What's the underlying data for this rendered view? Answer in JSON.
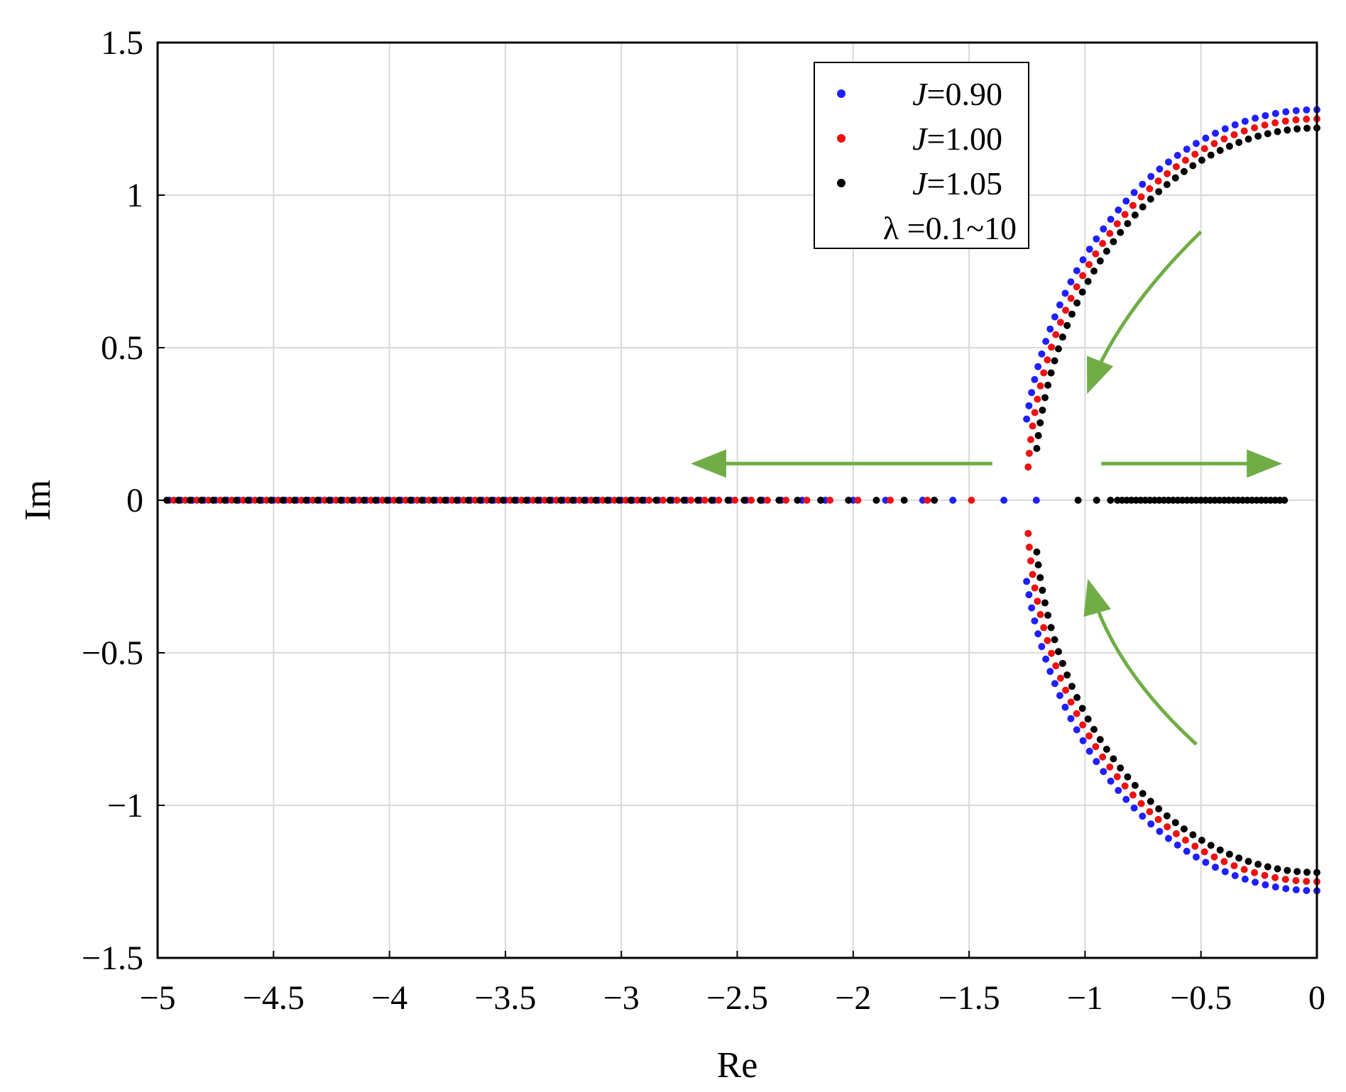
{
  "chart_data": {
    "type": "scatter",
    "xlabel": "Re",
    "ylabel": "Im",
    "xlim": [
      -5,
      0
    ],
    "ylim": [
      -1.5,
      1.5
    ],
    "xticks": [
      -5,
      -4.5,
      -4,
      -3.5,
      -3,
      -2.5,
      -2,
      -1.5,
      -1,
      -0.5,
      0
    ],
    "xtick_labels": [
      "−5",
      "−4.5",
      "−4",
      "−3.5",
      "−3",
      "−2.5",
      "−2",
      "−1.5",
      "−1",
      "−0.5",
      "0"
    ],
    "yticks": [
      1.5,
      1,
      0.5,
      0,
      -0.5,
      -1,
      -1.5
    ],
    "ytick_labels": [
      "1.5",
      "1",
      "0.5",
      "0",
      "−0.5",
      "−1",
      "−1.5"
    ],
    "grid": true,
    "legend_position": "top-right",
    "legend_note": "λ =0.1~10",
    "series": [
      {
        "name": "J=0.90",
        "label_italic": "J",
        "label_rest": "=0.90",
        "color": "#1f1fff",
        "arc": {
          "center_re": 0,
          "radius": 1.28,
          "theta_start_deg": 90,
          "theta_end_deg": 168,
          "points": 40
        },
        "axis_re": [
          -4.95,
          -4.9,
          -4.85,
          -4.8,
          -4.75,
          -4.7,
          -4.65,
          -4.6,
          -4.55,
          -4.5,
          -4.45,
          -4.4,
          -4.35,
          -4.3,
          -4.25,
          -4.2,
          -4.15,
          -4.1,
          -4.05,
          -4.0,
          -3.95,
          -3.9,
          -3.85,
          -3.8,
          -3.75,
          -3.7,
          -3.65,
          -3.6,
          -3.55,
          -3.5,
          -3.45,
          -3.4,
          -3.35,
          -3.3,
          -3.25,
          -3.2,
          -3.15,
          -3.1,
          -3.05,
          -3.0,
          -2.95,
          -2.9,
          -2.84,
          -2.78,
          -2.72,
          -2.66,
          -2.6,
          -2.53,
          -2.46,
          -2.39,
          -2.31,
          -2.22,
          -2.12,
          -2.0,
          -1.86,
          -1.7,
          -1.57,
          -1.35,
          -1.21
        ]
      },
      {
        "name": "J=1.00",
        "label_italic": "J",
        "label_rest": "=1.00",
        "color": "#ee1111",
        "arc": {
          "center_re": 0,
          "radius": 1.25,
          "theta_start_deg": 90,
          "theta_end_deg": 175,
          "points": 42
        },
        "axis_re": [
          -4.93,
          -4.88,
          -4.83,
          -4.78,
          -4.73,
          -4.68,
          -4.63,
          -4.58,
          -4.53,
          -4.48,
          -4.43,
          -4.38,
          -4.33,
          -4.28,
          -4.23,
          -4.18,
          -4.13,
          -4.08,
          -4.03,
          -3.98,
          -3.93,
          -3.88,
          -3.83,
          -3.78,
          -3.73,
          -3.68,
          -3.63,
          -3.58,
          -3.53,
          -3.48,
          -3.43,
          -3.38,
          -3.33,
          -3.28,
          -3.23,
          -3.18,
          -3.13,
          -3.08,
          -3.03,
          -2.98,
          -2.93,
          -2.88,
          -2.82,
          -2.76,
          -2.7,
          -2.64,
          -2.58,
          -2.51,
          -2.44,
          -2.37,
          -2.29,
          -2.2,
          -2.1,
          -1.98,
          -1.84,
          -1.68,
          -1.49
        ]
      },
      {
        "name": "J=1.05",
        "label_italic": "J",
        "label_rest": "=1.05",
        "color": "#000000",
        "arc": {
          "center_re": 0,
          "radius": 1.22,
          "theta_start_deg": 90,
          "theta_end_deg": 172,
          "points": 42
        },
        "axis_re": [
          -4.96,
          -4.91,
          -4.86,
          -4.81,
          -4.76,
          -4.71,
          -4.66,
          -4.61,
          -4.56,
          -4.51,
          -4.46,
          -4.41,
          -4.36,
          -4.31,
          -4.26,
          -4.21,
          -4.16,
          -4.11,
          -4.06,
          -4.01,
          -3.96,
          -3.91,
          -3.86,
          -3.81,
          -3.76,
          -3.71,
          -3.66,
          -3.61,
          -3.56,
          -3.51,
          -3.46,
          -3.41,
          -3.36,
          -3.31,
          -3.26,
          -3.21,
          -3.16,
          -3.11,
          -3.06,
          -3.01,
          -2.96,
          -2.91,
          -2.85,
          -2.79,
          -2.73,
          -2.67,
          -2.61,
          -2.54,
          -2.47,
          -2.4,
          -2.32,
          -2.24,
          -2.14,
          -2.02,
          -1.9,
          -1.78,
          -1.65,
          -1.03,
          -0.95,
          -0.89,
          -0.86,
          -0.84,
          -0.82,
          -0.8,
          -0.78,
          -0.76,
          -0.74,
          -0.72,
          -0.7,
          -0.68,
          -0.66,
          -0.64,
          -0.62,
          -0.6,
          -0.58,
          -0.56,
          -0.54,
          -0.52,
          -0.5,
          -0.48,
          -0.46,
          -0.44,
          -0.42,
          -0.4,
          -0.38,
          -0.36,
          -0.34,
          -0.32,
          -0.3,
          -0.28,
          -0.26,
          -0.24,
          -0.22,
          -0.2,
          -0.18,
          -0.16,
          -0.14
        ]
      }
    ],
    "annotation_arrows": [
      {
        "kind": "curved",
        "from": [
          -0.5,
          0.88
        ],
        "ctrl": [
          -0.85,
          0.62
        ],
        "to": [
          -0.98,
          0.37
        ],
        "color": "#70ad47"
      },
      {
        "kind": "curved",
        "from": [
          -0.52,
          -0.8
        ],
        "ctrl": [
          -0.88,
          -0.55
        ],
        "to": [
          -0.98,
          -0.28
        ],
        "color": "#70ad47"
      },
      {
        "kind": "straight",
        "from": [
          -1.4,
          0.12
        ],
        "to": [
          -2.67,
          0.12
        ],
        "color": "#70ad47"
      },
      {
        "kind": "straight",
        "from": [
          -0.93,
          0.12
        ],
        "to": [
          -0.18,
          0.12
        ],
        "color": "#70ad47"
      }
    ]
  }
}
